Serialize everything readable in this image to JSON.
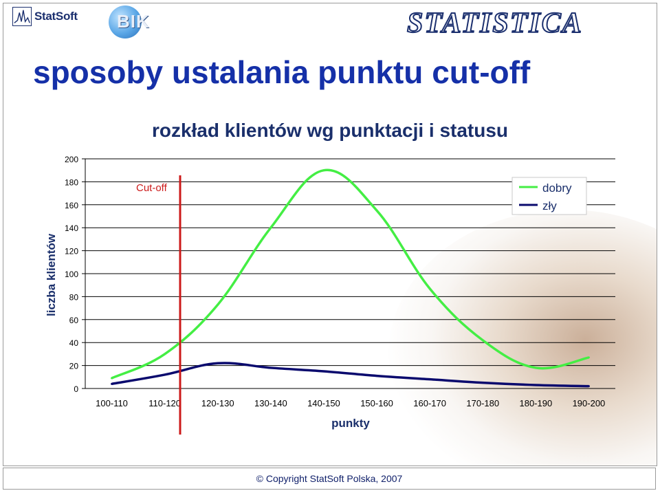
{
  "header": {
    "statsoft_logo": "StatSoft",
    "bik_logo": "BIK",
    "statistica_logo": "STATISTICA"
  },
  "slide_title": "sposoby ustalania punktu cut-off",
  "footer_text": "© Copyright StatSoft Polska, 2007",
  "colors": {
    "dobry": "#44ee44",
    "zly": "#0a0a6e",
    "cutoff": "#cc1a1a",
    "title": "#1530a8"
  },
  "chart_data": {
    "type": "line",
    "title": "rozkład klientów wg punktacji i statusu",
    "xlabel": "punkty",
    "ylabel": "liczba klientów",
    "categories": [
      "100-110",
      "110-120",
      "120-130",
      "130-140",
      "140-150",
      "150-160",
      "160-170",
      "170-180",
      "180-190",
      "190-200"
    ],
    "ylim": [
      0,
      200
    ],
    "yticks": [
      0,
      20,
      40,
      60,
      80,
      100,
      120,
      140,
      160,
      180,
      200
    ],
    "grid": true,
    "legend": "top-right",
    "series": [
      {
        "name": "dobry",
        "values": [
          9,
          30,
          73,
          140,
          190,
          155,
          87,
          42,
          18,
          27
        ]
      },
      {
        "name": "zły",
        "values": [
          4,
          12,
          22,
          18,
          15,
          11,
          8,
          5,
          3,
          2
        ]
      }
    ],
    "annotations": [
      {
        "text": "Cut-off",
        "x_between": [
          "100-110",
          "110-120"
        ]
      }
    ]
  }
}
